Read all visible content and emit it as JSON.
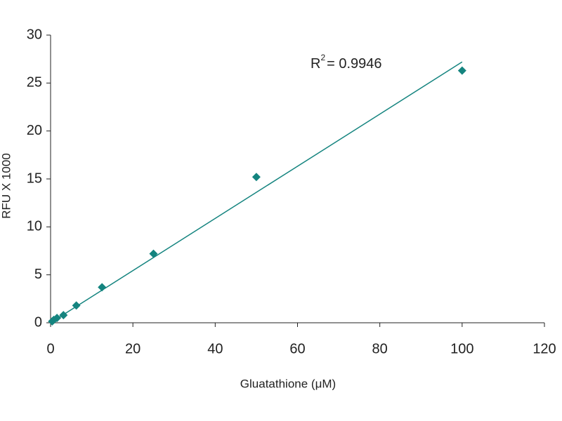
{
  "chart_data": {
    "type": "scatter",
    "x_label": "Gluatathione (μM)",
    "y_label": "RFU X 1000",
    "annotation": {
      "base": "R",
      "sup": "2",
      "rest": "= 0.9946"
    },
    "color": "#14847f",
    "x": [
      0.39,
      0.78,
      1.56,
      3.125,
      6.25,
      12.5,
      25,
      50,
      100
    ],
    "values": [
      0.15,
      0.3,
      0.5,
      0.8,
      1.8,
      3.7,
      7.2,
      15.2,
      26.3
    ],
    "fit": {
      "x": [
        0,
        100
      ],
      "values": [
        0,
        27.2
      ]
    },
    "xlim": [
      0,
      120
    ],
    "xticks": [
      0,
      20,
      40,
      60,
      80,
      100,
      120
    ],
    "ylim": [
      0,
      30
    ],
    "yticks": [
      0,
      5,
      10,
      15,
      20,
      25,
      30
    ],
    "grid": false
  }
}
